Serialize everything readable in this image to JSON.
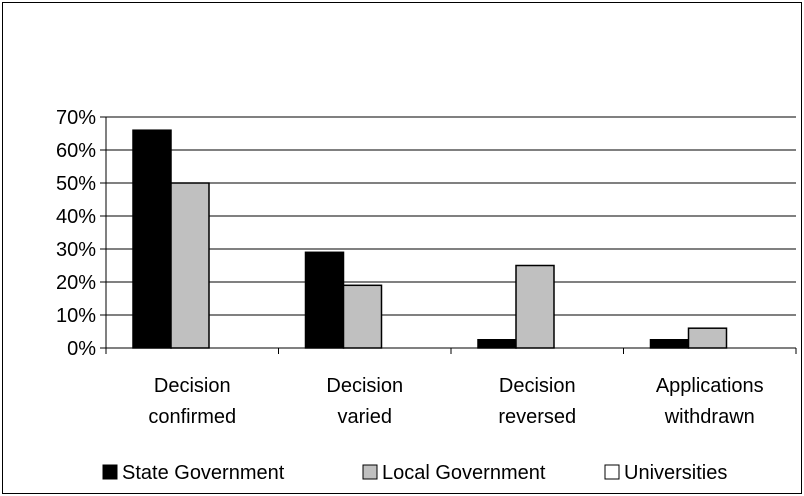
{
  "chart_data": {
    "type": "bar",
    "categories": [
      [
        "Decision",
        "confirmed"
      ],
      [
        "Decision",
        "varied"
      ],
      [
        "Decision",
        "reversed"
      ],
      [
        "Applications",
        "withdrawn"
      ]
    ],
    "series": [
      {
        "name": "State Government",
        "color": "#000000",
        "values": [
          66,
          29,
          2.5,
          2.5
        ]
      },
      {
        "name": "Local Government",
        "color": "#c0c0c0",
        "values": [
          50,
          19,
          25,
          6
        ]
      },
      {
        "name": "Universities",
        "color": "#ffffff",
        "values": [
          0,
          0,
          0,
          0
        ]
      }
    ],
    "ylim": [
      0,
      70
    ],
    "yticks": [
      {
        "value": 0,
        "label": "0%"
      },
      {
        "value": 10,
        "label": "10%"
      },
      {
        "value": 20,
        "label": "20%"
      },
      {
        "value": 30,
        "label": "30%"
      },
      {
        "value": 40,
        "label": "40%"
      },
      {
        "value": 50,
        "label": "50%"
      },
      {
        "value": 60,
        "label": "60%"
      },
      {
        "value": 70,
        "label": "70%"
      }
    ],
    "grid": true,
    "legend": "bottom"
  }
}
